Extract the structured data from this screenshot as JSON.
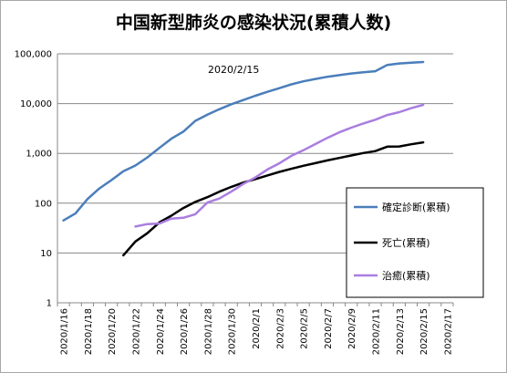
{
  "chart_data": {
    "type": "line",
    "title": "中国新型肺炎の感染状況(累積人数)",
    "annotation": "2020/2/15",
    "y_scale": "log",
    "ylim": [
      1,
      100000
    ],
    "y_ticks": [
      "1",
      "10",
      "100",
      "1,000",
      "10,000",
      "100,000"
    ],
    "x_tick_labels": [
      "2020/1/16",
      "2020/1/18",
      "2020/1/20",
      "2020/1/22",
      "2020/1/24",
      "2020/1/26",
      "2020/1/28",
      "2020/1/30",
      "2020/2/1",
      "2020/2/3",
      "2020/2/5",
      "2020/2/7",
      "2020/2/9",
      "2020/2/11",
      "2020/2/13",
      "2020/2/15",
      "2020/2/17"
    ],
    "gridlines": "horizontal",
    "legend_position": "right",
    "series": [
      {
        "name": "確定診断(累積)",
        "color": "#4a7ebb",
        "points": [
          [
            "2020/1/16",
            45
          ],
          [
            "2020/1/17",
            62
          ],
          [
            "2020/1/18",
            121
          ],
          [
            "2020/1/19",
            198
          ],
          [
            "2020/1/20",
            291
          ],
          [
            "2020/1/21",
            440
          ],
          [
            "2020/1/22",
            571
          ],
          [
            "2020/1/23",
            830
          ],
          [
            "2020/1/24",
            1287
          ],
          [
            "2020/1/25",
            1975
          ],
          [
            "2020/1/26",
            2744
          ],
          [
            "2020/1/27",
            4515
          ],
          [
            "2020/1/28",
            5974
          ],
          [
            "2020/1/29",
            7711
          ],
          [
            "2020/1/30",
            9692
          ],
          [
            "2020/1/31",
            11791
          ],
          [
            "2020/2/1",
            14380
          ],
          [
            "2020/2/2",
            17205
          ],
          [
            "2020/2/3",
            20438
          ],
          [
            "2020/2/4",
            24324
          ],
          [
            "2020/2/5",
            28018
          ],
          [
            "2020/2/6",
            31161
          ],
          [
            "2020/2/7",
            34546
          ],
          [
            "2020/2/8",
            37198
          ],
          [
            "2020/2/9",
            40171
          ],
          [
            "2020/2/10",
            42638
          ],
          [
            "2020/2/11",
            44653
          ],
          [
            "2020/2/12",
            59804
          ],
          [
            "2020/2/13",
            63851
          ],
          [
            "2020/2/14",
            66492
          ],
          [
            "2020/2/15",
            68500
          ]
        ]
      },
      {
        "name": "死亡(累積)",
        "color": "#000000",
        "points": [
          [
            "2020/1/21",
            9
          ],
          [
            "2020/1/22",
            17
          ],
          [
            "2020/1/23",
            25
          ],
          [
            "2020/1/24",
            41
          ],
          [
            "2020/1/25",
            56
          ],
          [
            "2020/1/26",
            80
          ],
          [
            "2020/1/27",
            106
          ],
          [
            "2020/1/28",
            132
          ],
          [
            "2020/1/29",
            170
          ],
          [
            "2020/1/30",
            213
          ],
          [
            "2020/1/31",
            259
          ],
          [
            "2020/2/1",
            304
          ],
          [
            "2020/2/2",
            361
          ],
          [
            "2020/2/3",
            425
          ],
          [
            "2020/2/4",
            490
          ],
          [
            "2020/2/5",
            563
          ],
          [
            "2020/2/6",
            636
          ],
          [
            "2020/2/7",
            722
          ],
          [
            "2020/2/8",
            811
          ],
          [
            "2020/2/9",
            908
          ],
          [
            "2020/2/10",
            1016
          ],
          [
            "2020/2/11",
            1113
          ],
          [
            "2020/2/12",
            1367
          ],
          [
            "2020/2/13",
            1380
          ],
          [
            "2020/2/14",
            1523
          ],
          [
            "2020/2/15",
            1665
          ]
        ]
      },
      {
        "name": "治癒(累積)",
        "color": "#a97ee0",
        "points": [
          [
            "2020/1/22",
            34
          ],
          [
            "2020/1/23",
            38
          ],
          [
            "2020/1/24",
            39
          ],
          [
            "2020/1/25",
            49
          ],
          [
            "2020/1/26",
            51
          ],
          [
            "2020/1/27",
            60
          ],
          [
            "2020/1/28",
            103
          ],
          [
            "2020/1/29",
            124
          ],
          [
            "2020/1/30",
            171
          ],
          [
            "2020/1/31",
            243
          ],
          [
            "2020/2/1",
            328
          ],
          [
            "2020/2/2",
            475
          ],
          [
            "2020/2/3",
            632
          ],
          [
            "2020/2/4",
            892
          ],
          [
            "2020/2/5",
            1153
          ],
          [
            "2020/2/6",
            1540
          ],
          [
            "2020/2/7",
            2050
          ],
          [
            "2020/2/8",
            2649
          ],
          [
            "2020/2/9",
            3281
          ],
          [
            "2020/2/10",
            3996
          ],
          [
            "2020/2/11",
            4740
          ],
          [
            "2020/2/12",
            5911
          ],
          [
            "2020/2/13",
            6723
          ],
          [
            "2020/2/14",
            8096
          ],
          [
            "2020/2/15",
            9419
          ]
        ]
      }
    ]
  }
}
